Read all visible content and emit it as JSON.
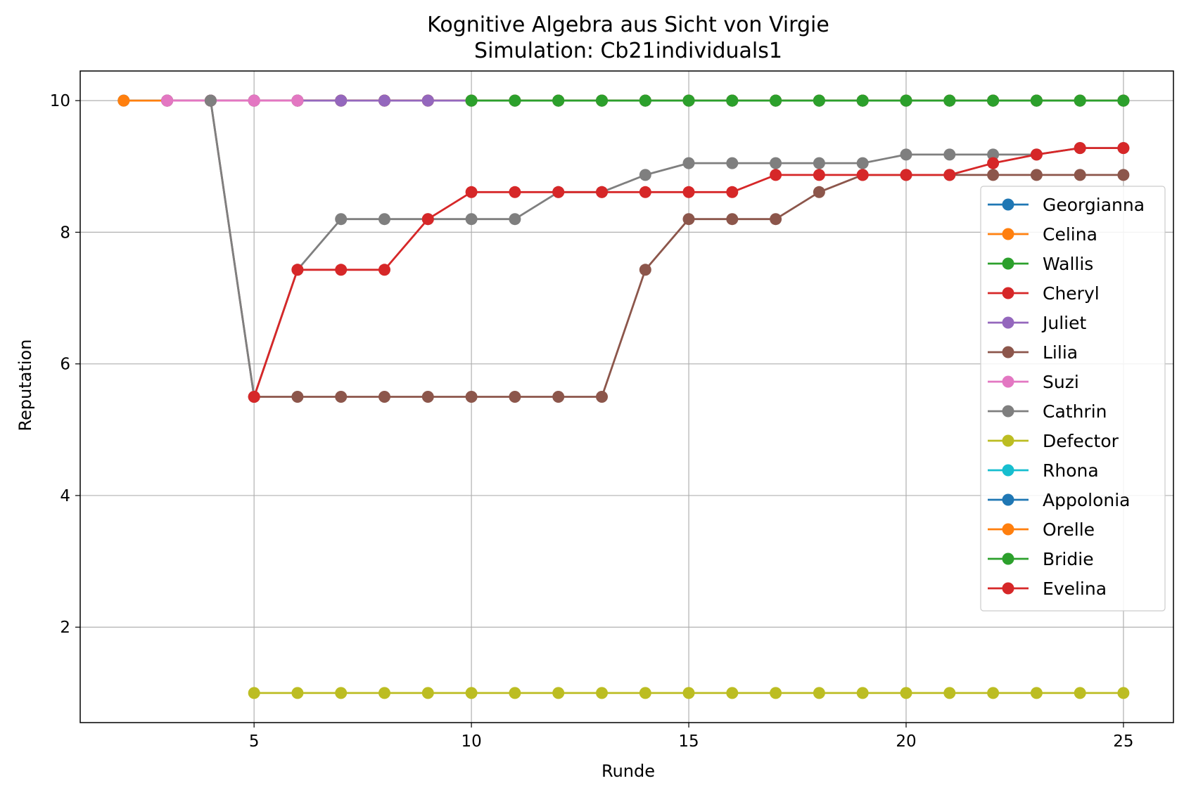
{
  "chart_data": {
    "type": "line",
    "title": "Kognitive Algebra aus Sicht von Virgie",
    "subtitle": "Simulation: Cb21individuals1",
    "xlabel": "Runde",
    "ylabel": "Reputation",
    "xlim": [
      1,
      26.15
    ],
    "ylim": [
      0.55,
      10.45
    ],
    "xticks": [
      5,
      10,
      15,
      20,
      25
    ],
    "yticks": [
      2,
      4,
      6,
      8,
      10
    ],
    "grid": true,
    "legend_position": "right",
    "series": [
      {
        "name": "Georgianna",
        "color": "#1f77b4",
        "x": [
          2,
          3,
          4,
          5,
          6,
          7
        ],
        "y": [
          10,
          10,
          10,
          10,
          10,
          10
        ]
      },
      {
        "name": "Celina",
        "color": "#ff7f0e",
        "x": [
          2,
          3,
          4,
          5,
          6,
          7,
          8,
          9
        ],
        "y": [
          10,
          10,
          10,
          10,
          10,
          10,
          10,
          10
        ]
      },
      {
        "name": "Wallis",
        "color": "#2ca02c",
        "x": [
          3,
          4,
          5,
          6,
          7,
          8,
          9,
          10,
          11,
          12,
          13,
          14,
          15,
          16,
          17,
          18,
          19,
          20,
          21,
          22,
          23,
          24,
          25
        ],
        "y": [
          10,
          10,
          10,
          10,
          10,
          10,
          10,
          10,
          10,
          10,
          10,
          10,
          10,
          10,
          10,
          10,
          10,
          10,
          10,
          10,
          10,
          10,
          10
        ]
      },
      {
        "name": "Cheryl",
        "color": "#d62728",
        "x": [
          3,
          4,
          5,
          6,
          7,
          8,
          9,
          10,
          11,
          12,
          13,
          14,
          15,
          16,
          17,
          18,
          19,
          20,
          21,
          22,
          23,
          24,
          25
        ],
        "y": [
          10,
          10,
          10,
          10,
          10,
          10,
          10,
          10,
          10,
          10,
          10,
          10,
          10,
          10,
          10,
          10,
          10,
          10,
          10,
          10,
          10,
          10,
          10
        ]
      },
      {
        "name": "Juliet",
        "color": "#9467bd",
        "x": [
          3,
          4,
          5,
          6,
          7,
          8,
          9,
          10,
          11,
          12,
          13,
          14,
          15,
          16,
          17,
          18,
          19,
          20,
          21,
          22,
          23,
          24,
          25
        ],
        "y": [
          10,
          10,
          10,
          10,
          10,
          10,
          10,
          10,
          10,
          10,
          10,
          10,
          10,
          10,
          10,
          10,
          10,
          10,
          10,
          10,
          10,
          10,
          10
        ]
      },
      {
        "name": "Lilia",
        "color": "#8c564b",
        "x": [
          4,
          5,
          6,
          7,
          8,
          9,
          10,
          11,
          12,
          13,
          14,
          15,
          16,
          17,
          18,
          19,
          20,
          21,
          22,
          23,
          24,
          25
        ],
        "y": [
          10,
          5.5,
          5.5,
          5.5,
          5.5,
          5.5,
          5.5,
          5.5,
          5.5,
          5.5,
          7.43,
          8.2,
          8.2,
          8.2,
          8.61,
          8.87,
          8.87,
          8.87,
          8.87,
          8.87,
          8.87,
          8.87
        ]
      },
      {
        "name": "Suzi",
        "color": "#e377c2",
        "x": [
          3,
          4,
          5,
          6
        ],
        "y": [
          10,
          10,
          10,
          10
        ]
      },
      {
        "name": "Cathrin",
        "color": "#7f7f7f",
        "x": [
          4,
          5,
          6,
          7,
          8,
          9,
          10,
          11,
          12,
          13,
          14,
          15,
          16,
          17,
          18,
          19,
          20,
          21,
          22,
          23,
          24,
          25
        ],
        "y": [
          10,
          5.5,
          7.43,
          8.2,
          8.2,
          8.2,
          8.2,
          8.2,
          8.61,
          8.61,
          8.87,
          9.05,
          9.05,
          9.05,
          9.05,
          9.05,
          9.18,
          9.18,
          9.18,
          9.18,
          9.28,
          9.28
        ]
      },
      {
        "name": "Defector",
        "color": "#bcbd22",
        "x": [
          5,
          6,
          7,
          8,
          9,
          10,
          11,
          12,
          13,
          14,
          15,
          16,
          17,
          18,
          19,
          20,
          21,
          22,
          23,
          24,
          25
        ],
        "y": [
          1,
          1,
          1,
          1,
          1,
          1,
          1,
          1,
          1,
          1,
          1,
          1,
          1,
          1,
          1,
          1,
          1,
          1,
          1,
          1,
          1
        ]
      },
      {
        "name": "Rhona",
        "color": "#17becf",
        "x": [
          10,
          11,
          12,
          13,
          14,
          15,
          16,
          17,
          18,
          19,
          20,
          21,
          22,
          23,
          24,
          25
        ],
        "y": [
          10,
          10,
          10,
          10,
          10,
          10,
          10,
          10,
          10,
          10,
          10,
          10,
          10,
          10,
          10,
          10
        ]
      },
      {
        "name": "Appolonia",
        "color": "#1f77b4",
        "x": [
          10,
          11,
          12,
          13,
          14,
          15,
          16,
          17,
          18,
          19,
          20,
          21,
          22,
          23,
          24,
          25
        ],
        "y": [
          10,
          10,
          10,
          10,
          10,
          10,
          10,
          10,
          10,
          10,
          10,
          10,
          10,
          10,
          10,
          10
        ]
      },
      {
        "name": "Orelle",
        "color": "#ff7f0e",
        "x": [
          10,
          11,
          12,
          13,
          14,
          15,
          16,
          17,
          18,
          19,
          20,
          21,
          22,
          23,
          24,
          25
        ],
        "y": [
          10,
          10,
          10,
          10,
          10,
          10,
          10,
          10,
          10,
          10,
          10,
          10,
          10,
          10,
          10,
          10
        ]
      },
      {
        "name": "Bridie",
        "color": "#2ca02c",
        "x": [
          10,
          11,
          12,
          13,
          14,
          15,
          16,
          17,
          18,
          19,
          20,
          21,
          22,
          23,
          24,
          25
        ],
        "y": [
          10,
          10,
          10,
          10,
          10,
          10,
          10,
          10,
          10,
          10,
          10,
          10,
          10,
          10,
          10,
          10
        ]
      },
      {
        "name": "Evelina",
        "color": "#d62728",
        "x": [
          5,
          6,
          7,
          8,
          9,
          10,
          11,
          12,
          13,
          14,
          15,
          16,
          17,
          18,
          19,
          20,
          21,
          22,
          23,
          24,
          25
        ],
        "y": [
          5.5,
          7.43,
          7.43,
          7.43,
          8.2,
          8.61,
          8.61,
          8.61,
          8.61,
          8.61,
          8.61,
          8.61,
          8.87,
          8.87,
          8.87,
          8.87,
          8.87,
          9.05,
          9.18,
          9.28,
          9.28
        ]
      }
    ]
  }
}
